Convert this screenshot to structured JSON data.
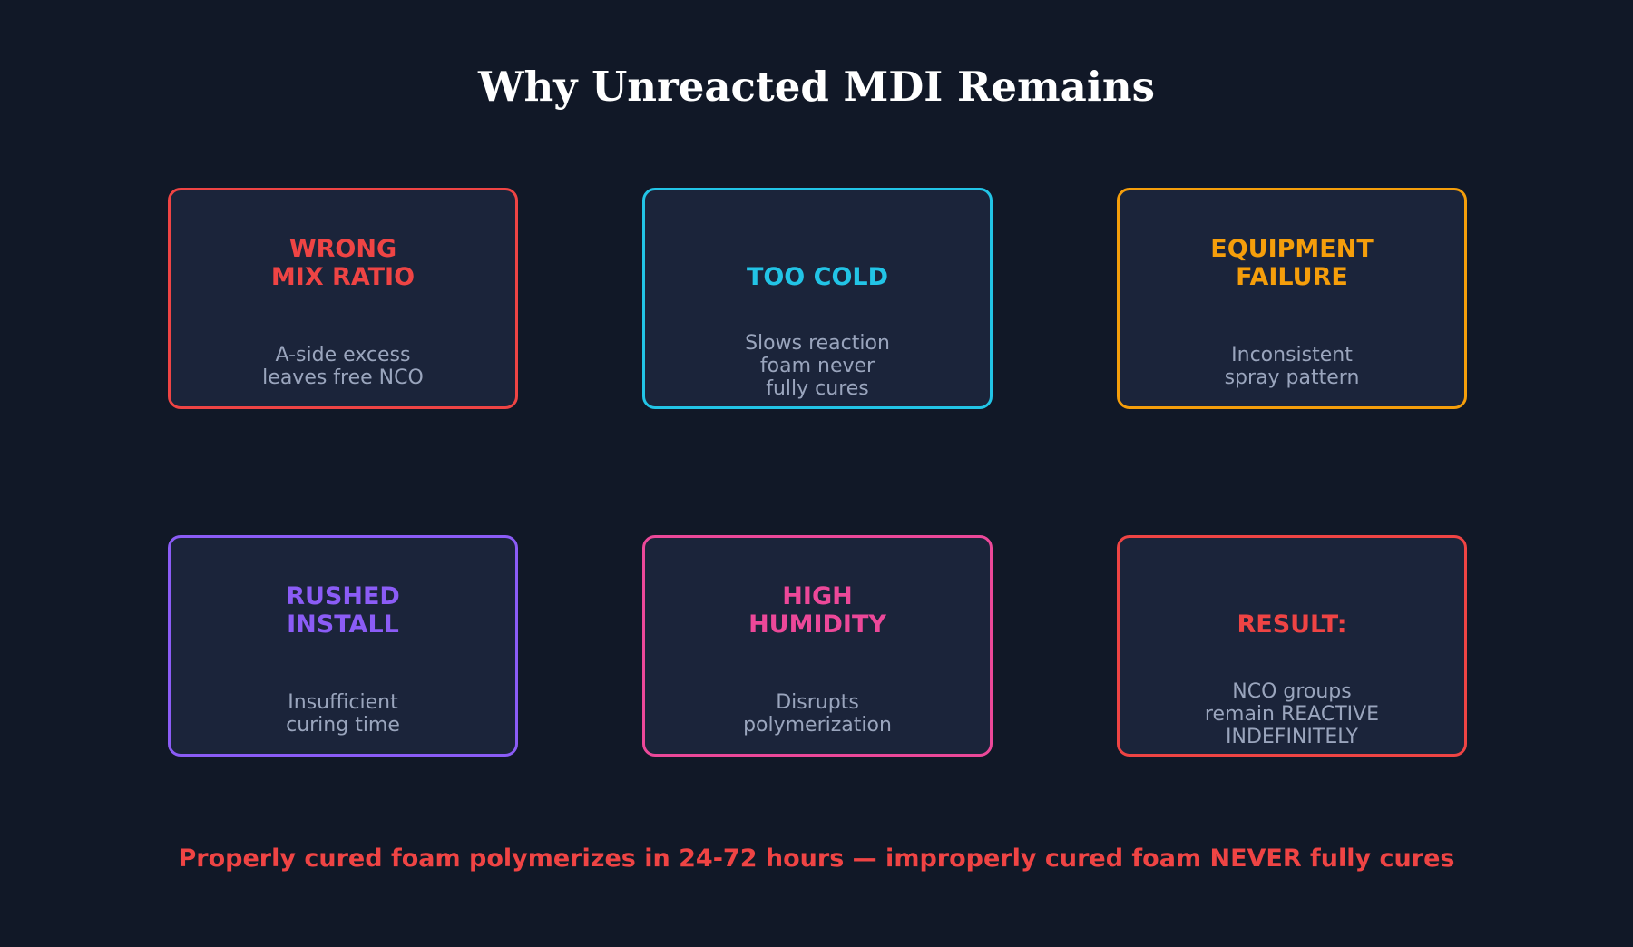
{
  "title": "Why Unreacted MDI Remains",
  "cards": [
    {
      "heading": "WRONG\nMIX RATIO",
      "description": "A-side excess\nleaves free NCO",
      "color": "#ef4444"
    },
    {
      "heading": "TOO COLD",
      "description": "Slows reaction\nfoam never\nfully cures",
      "color": "#22c4e6"
    },
    {
      "heading": "EQUIPMENT\nFAILURE",
      "description": "Inconsistent\nspray pattern",
      "color": "#f59e0b"
    },
    {
      "heading": "RUSHED\nINSTALL",
      "description": "Insufficient\ncuring time",
      "color": "#8b5cf6"
    },
    {
      "heading": "HIGH\nHUMIDITY",
      "description": "Disrupts\npolymerization",
      "color": "#ec4899"
    },
    {
      "heading": "RESULT:",
      "description": "NCO groups\nremain REACTIVE\nINDEFINITELY",
      "color": "#ef4444"
    }
  ],
  "footer": "Properly cured foam polymerizes in 24-72 hours — improperly cured foam NEVER fully cures",
  "colors": {
    "background": "#111827",
    "card_fill": "#1b243a",
    "description_text": "#9aa5bd",
    "footer_text": "#ef4444"
  }
}
